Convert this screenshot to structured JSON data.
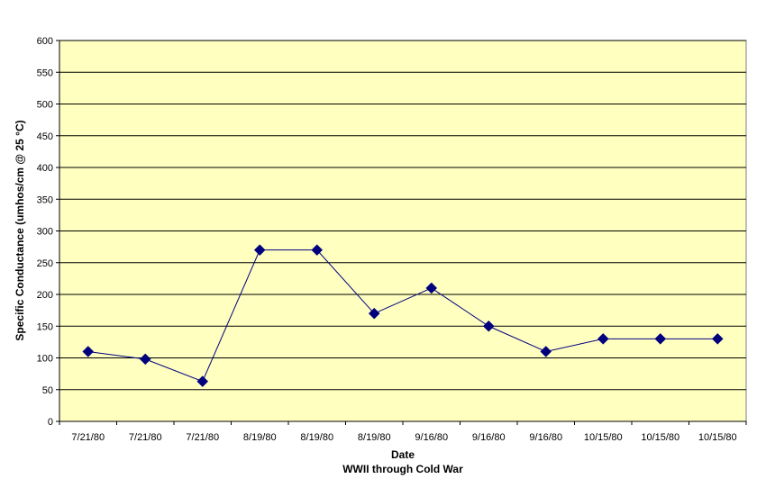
{
  "chart_data": {
    "type": "line",
    "categories": [
      "7/21/80",
      "7/21/80",
      "7/21/80",
      "8/19/80",
      "8/19/80",
      "8/19/80",
      "9/16/80",
      "9/16/80",
      "9/16/80",
      "10/15/80",
      "10/15/80",
      "10/15/80"
    ],
    "series": [
      {
        "values": [
          110,
          98,
          63,
          270,
          270,
          170,
          210,
          150,
          110,
          130,
          130,
          130
        ]
      }
    ],
    "xlabel": "Date",
    "xlabel_sub": "WWII through Cold War",
    "ylabel": "Specific Conductance (umhos/cm @ 25 °C)",
    "ylim": [
      0,
      600
    ],
    "yticks": [
      0,
      50,
      100,
      150,
      200,
      250,
      300,
      350,
      400,
      450,
      500,
      550,
      600
    ],
    "grid": "horizontal",
    "marker": "diamond",
    "colors": {
      "plot_background": "#FFFFC0",
      "line": "#00007F",
      "marker": "#00007F",
      "gridline": "#000000"
    }
  }
}
